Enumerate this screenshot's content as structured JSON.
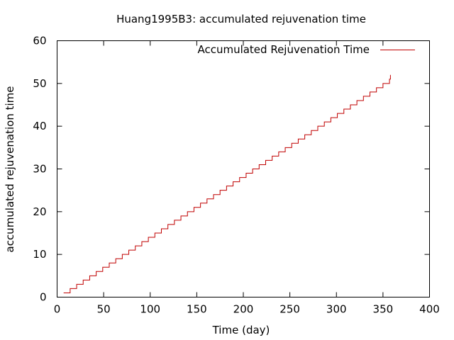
{
  "chart_data": {
    "type": "line",
    "title": "Huang1995B3: accumulated rejuvenation time",
    "xlabel": "Time (day)",
    "ylabel": "accumulated rejuvenation time",
    "xlim": [
      0,
      400
    ],
    "ylim": [
      0,
      60
    ],
    "x_ticks": [
      0,
      50,
      100,
      150,
      200,
      250,
      300,
      350,
      400
    ],
    "y_ticks": [
      0,
      10,
      20,
      30,
      40,
      50,
      60
    ],
    "grid": false,
    "legend_position": "top-right",
    "line_style": "step",
    "series": [
      {
        "name": "Accumulated Rejuvenation Time",
        "color": "#c00000",
        "x": [
          7,
          14,
          21,
          28,
          35,
          42,
          49,
          56,
          63,
          70,
          77,
          84,
          91,
          98,
          105,
          112,
          119,
          126,
          133,
          140,
          147,
          154,
          161,
          168,
          175,
          182,
          189,
          196,
          203,
          210,
          217,
          224,
          231,
          238,
          245,
          252,
          259,
          266,
          273,
          280,
          287,
          294,
          301,
          308,
          315,
          322,
          329,
          336,
          343,
          350,
          357,
          358
        ],
        "y": [
          1,
          2,
          3,
          4,
          5,
          6,
          7,
          8,
          9,
          10,
          11,
          12,
          13,
          14,
          15,
          16,
          17,
          18,
          19,
          20,
          21,
          22,
          23,
          24,
          25,
          26,
          27,
          28,
          29,
          30,
          31,
          32,
          33,
          34,
          35,
          36,
          37,
          38,
          39,
          40,
          41,
          42,
          43,
          44,
          45,
          46,
          47,
          48,
          49,
          50,
          51,
          52
        ]
      }
    ]
  }
}
